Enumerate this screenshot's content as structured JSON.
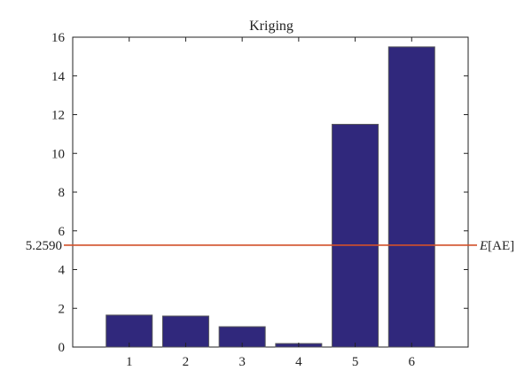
{
  "chart_data": {
    "type": "bar",
    "title": "Kriging",
    "xlabel": "",
    "ylabel": "",
    "categories": [
      "1",
      "2",
      "3",
      "4",
      "5",
      "6"
    ],
    "values": [
      1.65,
      1.6,
      1.05,
      0.18,
      11.5,
      15.5
    ],
    "ylim": [
      0,
      16
    ],
    "y_ticks": [
      "0",
      "2",
      "4",
      "6",
      "8",
      "10",
      "12",
      "14",
      "16"
    ],
    "grid": false,
    "reference_line": {
      "value": 5.259,
      "value_label": "5.2590",
      "label_prefix": "E",
      "label_suffix": "[AE]"
    },
    "colors": {
      "bar_fill": "#30287c",
      "bar_stroke": "#55555a",
      "reference_line": "#d2502a",
      "axis": "#222222"
    }
  }
}
